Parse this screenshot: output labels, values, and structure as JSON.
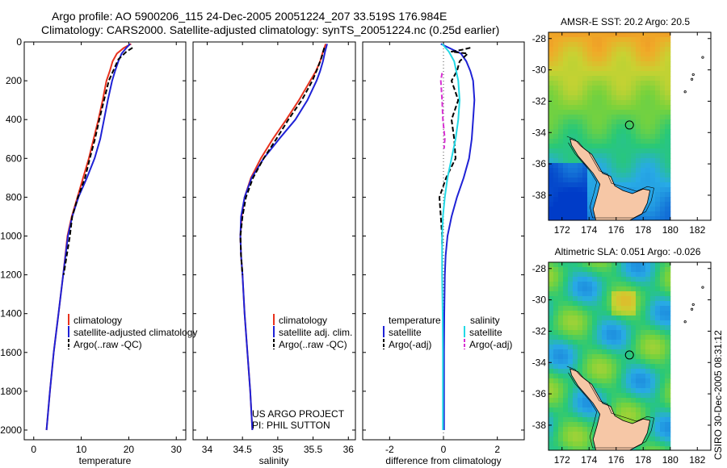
{
  "header": {
    "line1": "Argo profile: AO 5900206_115 24-Dec-2005 20051224_207 33.519S 176.984E",
    "line2": "Climatology: CARS2000. Satellite-adjusted climatology: synTS_20051224.nc (0.25d earlier)"
  },
  "side_stamp": "CSIRO 30-Dec-2005 08:31:12",
  "colors": {
    "climatology": "#e8321e",
    "satellite": "#1f22d6",
    "argo": "#000000",
    "sat_diff": "#22d9e6",
    "argo_sal_diff": "#d72fd2",
    "land": "#f6c7a6"
  },
  "chart_data": [
    {
      "type": "line",
      "xlabel": "temperature",
      "ylabel": "",
      "xlim": [
        -2,
        32
      ],
      "ylim": [
        2050,
        0
      ],
      "xticks": [
        0,
        10,
        20,
        30
      ],
      "yticks": [
        0,
        200,
        400,
        600,
        800,
        1000,
        1200,
        1400,
        1600,
        1800,
        2000
      ],
      "legend": [
        "climatology",
        "satellite-adjusted climatology",
        "Argo(..raw -QC)"
      ],
      "legend_position": "lower-right",
      "series": [
        {
          "name": "climatology",
          "style": "solid",
          "color": "climatology",
          "points": [
            [
              20.5,
              10
            ],
            [
              19,
              30
            ],
            [
              17.5,
              60
            ],
            [
              16.6,
              100
            ],
            [
              16,
              150
            ],
            [
              15.3,
              200
            ],
            [
              14.5,
              300
            ],
            [
              13.6,
              400
            ],
            [
              12.6,
              500
            ],
            [
              11.6,
              600
            ],
            [
              10.4,
              700
            ],
            [
              9.2,
              800
            ],
            [
              8,
              900
            ],
            [
              7.1,
              1000
            ],
            [
              6.2,
              1200
            ],
            [
              5.2,
              1400
            ],
            [
              4.2,
              1600
            ],
            [
              3.4,
              1800
            ],
            [
              2.7,
              2000
            ]
          ]
        },
        {
          "name": "satellite-adjusted climatology",
          "style": "solid",
          "color": "satellite",
          "points": [
            [
              20.3,
              10
            ],
            [
              19.5,
              30
            ],
            [
              18.5,
              60
            ],
            [
              17.8,
              100
            ],
            [
              17.1,
              150
            ],
            [
              16.5,
              200
            ],
            [
              15.6,
              300
            ],
            [
              14.8,
              400
            ],
            [
              14,
              500
            ],
            [
              12.8,
              600
            ],
            [
              11.2,
              700
            ],
            [
              9.4,
              800
            ],
            [
              8.1,
              900
            ],
            [
              7.2,
              1000
            ],
            [
              6.2,
              1200
            ],
            [
              5.2,
              1400
            ],
            [
              4.2,
              1600
            ],
            [
              3.4,
              1800
            ],
            [
              2.7,
              2000
            ]
          ]
        },
        {
          "name": "Argo(..raw -QC)",
          "style": "dash",
          "color": "argo",
          "points": [
            [
              20.8,
              30
            ],
            [
              19.5,
              50
            ],
            [
              17.8,
              90
            ],
            [
              16.7,
              150
            ],
            [
              15.8,
              200
            ],
            [
              14.8,
              300
            ],
            [
              13.8,
              400
            ],
            [
              12.9,
              500
            ],
            [
              11.8,
              600
            ],
            [
              10.8,
              700
            ],
            [
              9.3,
              800
            ],
            [
              8.1,
              900
            ],
            [
              7.6,
              1000
            ],
            [
              6.3,
              1200
            ]
          ]
        }
      ]
    },
    {
      "type": "line",
      "xlabel": "salinity",
      "xlim": [
        33.8,
        36.1
      ],
      "ylim": [
        2050,
        0
      ],
      "xticks": [
        34,
        34.5,
        35,
        35.5,
        36
      ],
      "legend": [
        "climatology",
        "satellite adj. clim.",
        "Argo(..raw -QC)"
      ],
      "legend_position": "lower-right",
      "annotation": [
        "US ARGO PROJECT",
        "PI: PHIL SUTTON"
      ],
      "series": [
        {
          "name": "climatology",
          "style": "solid",
          "color": "climatology",
          "points": [
            [
              35.68,
              10
            ],
            [
              35.64,
              50
            ],
            [
              35.6,
              100
            ],
            [
              35.54,
              150
            ],
            [
              35.46,
              200
            ],
            [
              35.3,
              300
            ],
            [
              35.12,
              400
            ],
            [
              34.93,
              500
            ],
            [
              34.76,
              600
            ],
            [
              34.62,
              700
            ],
            [
              34.53,
              800
            ],
            [
              34.49,
              900
            ],
            [
              34.47,
              1000
            ],
            [
              34.48,
              1100
            ],
            [
              34.5,
              1200
            ],
            [
              34.53,
              1400
            ],
            [
              34.57,
              1600
            ],
            [
              34.61,
              1800
            ],
            [
              34.64,
              2000
            ]
          ]
        },
        {
          "name": "satellite adj. clim.",
          "style": "solid",
          "color": "satellite",
          "points": [
            [
              35.7,
              10
            ],
            [
              35.67,
              50
            ],
            [
              35.64,
              100
            ],
            [
              35.6,
              150
            ],
            [
              35.55,
              200
            ],
            [
              35.42,
              300
            ],
            [
              35.25,
              400
            ],
            [
              35.02,
              500
            ],
            [
              34.8,
              600
            ],
            [
              34.63,
              700
            ],
            [
              34.53,
              800
            ],
            [
              34.48,
              900
            ],
            [
              34.47,
              1000
            ],
            [
              34.48,
              1100
            ],
            [
              34.5,
              1200
            ],
            [
              34.53,
              1400
            ],
            [
              34.57,
              1600
            ],
            [
              34.61,
              1800
            ],
            [
              34.64,
              2000
            ]
          ]
        },
        {
          "name": "Argo(..raw -QC)",
          "style": "dash",
          "color": "argo",
          "points": [
            [
              35.66,
              30
            ],
            [
              35.62,
              80
            ],
            [
              35.57,
              130
            ],
            [
              35.49,
              200
            ],
            [
              35.34,
              300
            ],
            [
              35.15,
              400
            ],
            [
              34.98,
              500
            ],
            [
              34.8,
              600
            ],
            [
              34.65,
              700
            ],
            [
              34.55,
              800
            ],
            [
              34.5,
              900
            ],
            [
              34.47,
              1000
            ],
            [
              34.48,
              1100
            ],
            [
              34.5,
              1200
            ]
          ]
        }
      ]
    },
    {
      "type": "line",
      "xlabel": "difference from climatology",
      "xlim": [
        -3,
        3
      ],
      "ylim": [
        2050,
        0
      ],
      "xticks": [
        -2,
        0,
        2
      ],
      "legend_groups": [
        {
          "heading": "temperature",
          "items": [
            "satellite",
            "Argo(-adj)"
          ]
        },
        {
          "heading": "salinity",
          "items": [
            "satellite",
            "Argo(-adj)"
          ]
        }
      ],
      "legend_position": "lower-center",
      "series": [
        {
          "name": "temperature satellite",
          "style": "solid",
          "color": "satellite",
          "points": [
            [
              -0.1,
              10
            ],
            [
              0.35,
              40
            ],
            [
              0.65,
              60
            ],
            [
              0.85,
              100
            ],
            [
              1,
              150
            ],
            [
              1.1,
              200
            ],
            [
              1.15,
              300
            ],
            [
              1.1,
              400
            ],
            [
              1.05,
              500
            ],
            [
              0.95,
              600
            ],
            [
              0.75,
              700
            ],
            [
              0.5,
              800
            ],
            [
              0.3,
              900
            ],
            [
              0.15,
              1000
            ],
            [
              0.08,
              1100
            ],
            [
              0.05,
              1200
            ],
            [
              0.03,
              1400
            ],
            [
              0.02,
              1600
            ],
            [
              0.02,
              1800
            ],
            [
              0.02,
              2000
            ]
          ]
        },
        {
          "name": "temperature Argo(-adj)",
          "style": "dash",
          "color": "argo",
          "points": [
            [
              1,
              30
            ],
            [
              0.7,
              40
            ],
            [
              0.3,
              50
            ],
            [
              0.9,
              60
            ],
            [
              0.6,
              100
            ],
            [
              0.5,
              150
            ],
            [
              0.3,
              200
            ],
            [
              0.55,
              300
            ],
            [
              0.3,
              400
            ],
            [
              0.4,
              500
            ],
            [
              0.45,
              600
            ],
            [
              0.1,
              700
            ],
            [
              -0.15,
              800
            ],
            [
              -0.1,
              900
            ],
            [
              -0.05,
              1000
            ],
            [
              -0.05,
              1050
            ]
          ]
        },
        {
          "name": "salinity satellite",
          "style": "solid",
          "color": "sat_diff",
          "points": [
            [
              -0.05,
              10
            ],
            [
              0.2,
              50
            ],
            [
              0.4,
              100
            ],
            [
              0.55,
              200
            ],
            [
              0.6,
              300
            ],
            [
              0.55,
              400
            ],
            [
              0.45,
              500
            ],
            [
              0.3,
              600
            ],
            [
              0.15,
              700
            ],
            [
              0.05,
              800
            ],
            [
              -0.02,
              900
            ],
            [
              -0.05,
              1000
            ],
            [
              -0.05,
              1200
            ],
            [
              -0.03,
              1400
            ],
            [
              -0.02,
              1600
            ],
            [
              -0.02,
              1800
            ],
            [
              -0.02,
              2000
            ]
          ]
        },
        {
          "name": "salinity Argo(-adj)",
          "style": "dash",
          "color": "argo_sal_diff",
          "points": [
            [
              -0.05,
              160
            ],
            [
              -0.1,
              200
            ],
            [
              -0.05,
              300
            ],
            [
              -0.02,
              400
            ],
            [
              0.05,
              500
            ],
            [
              0.02,
              550
            ]
          ]
        }
      ]
    }
  ],
  "maps": [
    {
      "title": "AMSR-E SST: 20.2 Argo: 20.5",
      "kind": "sst",
      "xticks": [
        172,
        174,
        176,
        178,
        180,
        182
      ],
      "yticks": [
        -28,
        -30,
        -32,
        -34,
        -36,
        -38
      ],
      "xlim": [
        171,
        183
      ],
      "ylim": [
        -39.6,
        -27.6
      ],
      "marker": {
        "lon": 176.984,
        "lat": -33.519
      }
    },
    {
      "title": "Altimetric SLA: 0.051 Argo: -0.026",
      "kind": "sla",
      "xticks": [
        172,
        174,
        176,
        178,
        180,
        182
      ],
      "yticks": [
        -28,
        -30,
        -32,
        -34,
        -36,
        -38
      ],
      "xlim": [
        171,
        183
      ],
      "ylim": [
        -39.6,
        -27.6
      ],
      "marker": {
        "lon": 176.984,
        "lat": -33.519
      }
    }
  ]
}
